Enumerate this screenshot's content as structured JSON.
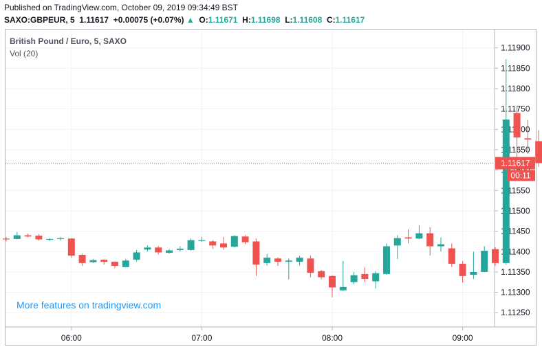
{
  "header": {
    "published": "Published on TradingView.com, October 09, 2019 09:34:49 BST",
    "symbol": "SAXO:GBPEUR, 5",
    "last": "1.11617",
    "change": "+0.00075 (+0.07%)",
    "change_arrow": "▲",
    "o_label": "O:",
    "o_value": "1.11671",
    "h_label": "H:",
    "h_value": "1.11698",
    "l_label": "L:",
    "l_value": "1.11608",
    "c_label": "C:",
    "c_value": "1.11617"
  },
  "legend": {
    "title": "British Pound / Euro, 5, SAXO",
    "volume": "Vol (20)"
  },
  "watermark": "More features on tradingview.com",
  "colors": {
    "up": "#26a69a",
    "down": "#ef5350",
    "price_line": "#ef5350",
    "label_bg": "#ef5350"
  },
  "chart_data": {
    "type": "candlestick",
    "symbol": "GBPEUR",
    "interval": "5",
    "x_ticks": [
      "06:00",
      "07:00",
      "08:00",
      "09:00"
    ],
    "y_ticks": [
      "1.11900",
      "1.11850",
      "1.11800",
      "1.11750",
      "1.11700",
      "1.11650",
      "1.11600",
      "1.11550",
      "1.11500",
      "1.11450",
      "1.11400",
      "1.11350",
      "1.11300",
      "1.11250"
    ],
    "ylim": [
      1.11215,
      1.11945
    ],
    "current_price": "1.11617",
    "countdown": "00:11",
    "candles": [
      {
        "time": "05:30",
        "o": 1.11432,
        "h": 1.11436,
        "l": 1.11425,
        "c": 1.1143
      },
      {
        "time": "05:35",
        "o": 1.11431,
        "h": 1.11448,
        "l": 1.1143,
        "c": 1.1144
      },
      {
        "time": "05:40",
        "o": 1.1144,
        "h": 1.11444,
        "l": 1.11435,
        "c": 1.11437
      },
      {
        "time": "05:45",
        "o": 1.11439,
        "h": 1.11443,
        "l": 1.11427,
        "c": 1.1143
      },
      {
        "time": "05:50",
        "o": 1.11429,
        "h": 1.11433,
        "l": 1.11426,
        "c": 1.11431
      },
      {
        "time": "05:55",
        "o": 1.11431,
        "h": 1.11436,
        "l": 1.11427,
        "c": 1.11433
      },
      {
        "time": "06:00",
        "o": 1.11432,
        "h": 1.11433,
        "l": 1.11385,
        "c": 1.1139
      },
      {
        "time": "06:05",
        "o": 1.11392,
        "h": 1.11395,
        "l": 1.11365,
        "c": 1.11372
      },
      {
        "time": "06:10",
        "o": 1.11374,
        "h": 1.11382,
        "l": 1.11372,
        "c": 1.11379
      },
      {
        "time": "06:15",
        "o": 1.1138,
        "h": 1.11381,
        "l": 1.11368,
        "c": 1.11375
      },
      {
        "time": "06:20",
        "o": 1.11375,
        "h": 1.11376,
        "l": 1.1136,
        "c": 1.11365
      },
      {
        "time": "06:25",
        "o": 1.11362,
        "h": 1.11382,
        "l": 1.11361,
        "c": 1.11378
      },
      {
        "time": "06:30",
        "o": 1.1138,
        "h": 1.11404,
        "l": 1.11376,
        "c": 1.11398
      },
      {
        "time": "06:35",
        "o": 1.11405,
        "h": 1.11415,
        "l": 1.114,
        "c": 1.1141
      },
      {
        "time": "06:40",
        "o": 1.1141,
        "h": 1.11414,
        "l": 1.11393,
        "c": 1.11398
      },
      {
        "time": "06:45",
        "o": 1.11397,
        "h": 1.11406,
        "l": 1.11395,
        "c": 1.11403
      },
      {
        "time": "06:50",
        "o": 1.11404,
        "h": 1.11413,
        "l": 1.114,
        "c": 1.11407
      },
      {
        "time": "06:55",
        "o": 1.11404,
        "h": 1.11432,
        "l": 1.11402,
        "c": 1.11428
      },
      {
        "time": "07:00",
        "o": 1.11426,
        "h": 1.11436,
        "l": 1.11424,
        "c": 1.11428
      },
      {
        "time": "07:05",
        "o": 1.11425,
        "h": 1.11428,
        "l": 1.11407,
        "c": 1.11415
      },
      {
        "time": "07:10",
        "o": 1.1142,
        "h": 1.11436,
        "l": 1.11405,
        "c": 1.1141
      },
      {
        "time": "07:15",
        "o": 1.11412,
        "h": 1.1144,
        "l": 1.1141,
        "c": 1.11438
      },
      {
        "time": "07:20",
        "o": 1.11437,
        "h": 1.1144,
        "l": 1.11418,
        "c": 1.11423
      },
      {
        "time": "07:25",
        "o": 1.11425,
        "h": 1.11432,
        "l": 1.1134,
        "c": 1.11368
      },
      {
        "time": "07:30",
        "o": 1.11372,
        "h": 1.11394,
        "l": 1.11366,
        "c": 1.11385
      },
      {
        "time": "07:35",
        "o": 1.11383,
        "h": 1.11386,
        "l": 1.11365,
        "c": 1.11375
      },
      {
        "time": "07:40",
        "o": 1.11375,
        "h": 1.11383,
        "l": 1.11332,
        "c": 1.11378
      },
      {
        "time": "07:45",
        "o": 1.11375,
        "h": 1.1139,
        "l": 1.11366,
        "c": 1.11385
      },
      {
        "time": "07:50",
        "o": 1.11383,
        "h": 1.1139,
        "l": 1.11337,
        "c": 1.11348
      },
      {
        "time": "07:55",
        "o": 1.11352,
        "h": 1.11355,
        "l": 1.11332,
        "c": 1.11337
      },
      {
        "time": "08:00",
        "o": 1.1134,
        "h": 1.11342,
        "l": 1.11288,
        "c": 1.11312
      },
      {
        "time": "08:05",
        "o": 1.11305,
        "h": 1.11377,
        "l": 1.11303,
        "c": 1.11313
      },
      {
        "time": "08:10",
        "o": 1.11325,
        "h": 1.1135,
        "l": 1.1132,
        "c": 1.11342
      },
      {
        "time": "08:15",
        "o": 1.11345,
        "h": 1.11361,
        "l": 1.11325,
        "c": 1.11333
      },
      {
        "time": "08:20",
        "o": 1.11327,
        "h": 1.11352,
        "l": 1.11309,
        "c": 1.11347
      },
      {
        "time": "08:25",
        "o": 1.11345,
        "h": 1.1142,
        "l": 1.11343,
        "c": 1.11413
      },
      {
        "time": "08:30",
        "o": 1.11415,
        "h": 1.1144,
        "l": 1.11382,
        "c": 1.11433
      },
      {
        "time": "08:35",
        "o": 1.11435,
        "h": 1.11455,
        "l": 1.1142,
        "c": 1.11432
      },
      {
        "time": "08:40",
        "o": 1.11432,
        "h": 1.11465,
        "l": 1.1143,
        "c": 1.11445
      },
      {
        "time": "08:45",
        "o": 1.11445,
        "h": 1.1146,
        "l": 1.1139,
        "c": 1.11413
      },
      {
        "time": "08:50",
        "o": 1.11413,
        "h": 1.11435,
        "l": 1.114,
        "c": 1.11418
      },
      {
        "time": "08:55",
        "o": 1.11408,
        "h": 1.1142,
        "l": 1.11362,
        "c": 1.1137
      },
      {
        "time": "09:00",
        "o": 1.1137,
        "h": 1.11377,
        "l": 1.11324,
        "c": 1.1134
      },
      {
        "time": "09:05",
        "o": 1.11343,
        "h": 1.114,
        "l": 1.11333,
        "c": 1.1135
      },
      {
        "time": "09:10",
        "o": 1.1135,
        "h": 1.11413,
        "l": 1.11349,
        "c": 1.11402
      },
      {
        "time": "09:15",
        "o": 1.11406,
        "h": 1.11411,
        "l": 1.11365,
        "c": 1.11372
      },
      {
        "time": "09:20",
        "o": 1.11372,
        "h": 1.11872,
        "l": 1.11368,
        "c": 1.11724
      },
      {
        "time": "09:25",
        "o": 1.1174,
        "h": 1.11758,
        "l": 1.1163,
        "c": 1.1168
      },
      {
        "time": "09:30",
        "o": 1.11678,
        "h": 1.11723,
        "l": 1.1164,
        "c": 1.11675
      },
      {
        "time": "09:35",
        "o": 1.11671,
        "h": 1.11698,
        "l": 1.11608,
        "c": 1.11617
      }
    ]
  }
}
